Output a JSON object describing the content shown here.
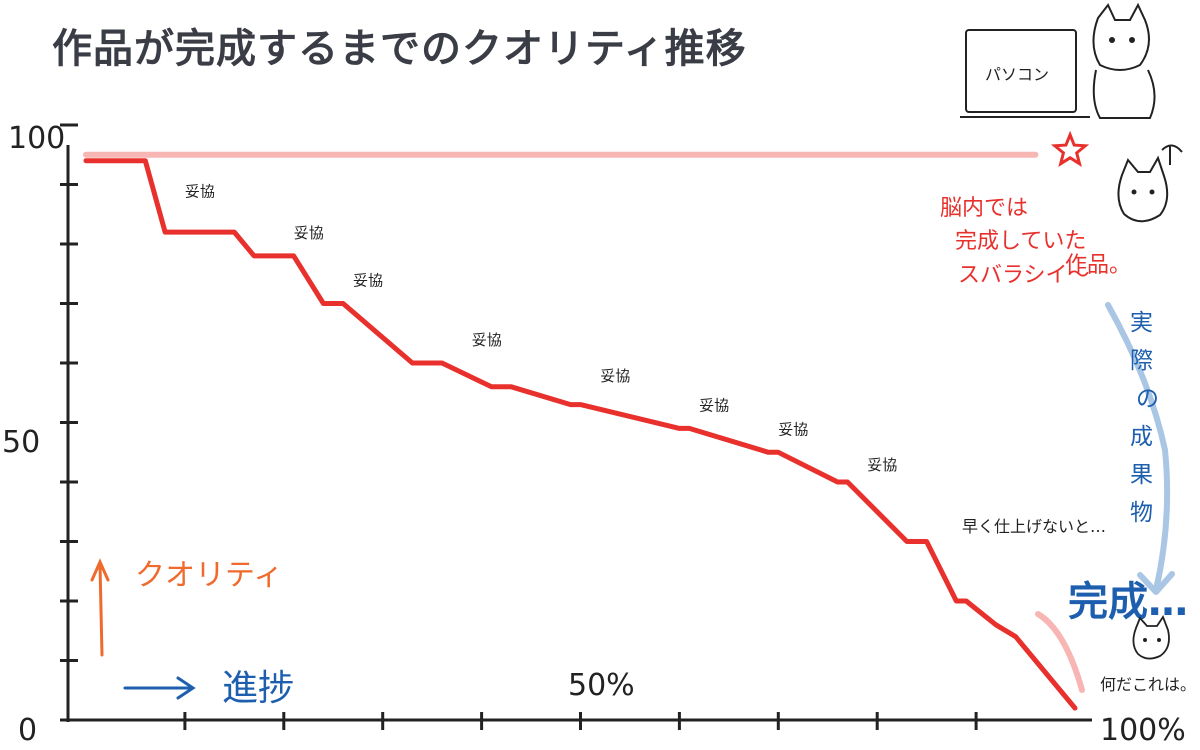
{
  "title": "作品が完成するまでのクオリティ推移",
  "chart_data": {
    "type": "line",
    "xlim": [
      0,
      100
    ],
    "ylim": [
      0,
      100
    ],
    "ytick_labels": [
      "100",
      "50",
      "0"
    ],
    "xtick_labels": [
      "50%",
      "100%"
    ],
    "y_axis_label": "クオリティ",
    "x_axis_label": "進捗",
    "ideal_level": 95,
    "series": [
      {
        "x": [
          0,
          6,
          8,
          15,
          17,
          21,
          24,
          26,
          33,
          36,
          41,
          43,
          49,
          50,
          60,
          61,
          69,
          70,
          76,
          77,
          83,
          85,
          88,
          89,
          92,
          94,
          100
        ],
        "y": [
          94,
          94,
          82,
          82,
          78,
          78,
          70,
          70,
          60,
          60,
          56,
          56,
          53,
          53,
          49,
          49,
          45,
          45,
          40,
          40,
          30,
          30,
          20,
          20,
          16,
          14,
          2
        ]
      }
    ],
    "annotations": [
      {
        "text": "妥協",
        "x": 10,
        "y": 88
      },
      {
        "text": "妥協",
        "x": 21,
        "y": 81
      },
      {
        "text": "妥協",
        "x": 27,
        "y": 73
      },
      {
        "text": "妥協",
        "x": 39,
        "y": 63
      },
      {
        "text": "妥協",
        "x": 52,
        "y": 57
      },
      {
        "text": "妥協",
        "x": 62,
        "y": 52
      },
      {
        "text": "妥協",
        "x": 70,
        "y": 48
      },
      {
        "text": "妥協",
        "x": 79,
        "y": 42
      }
    ]
  },
  "notes": {
    "brain": [
      "脳内では",
      "完成していた",
      "スバラシイ～",
      "作品。"
    ],
    "actual": [
      "実",
      "際",
      "の",
      "成",
      "果",
      "物"
    ],
    "hurry": "早く仕上げないと…",
    "done": "完成…",
    "what": "何だこれは。",
    "pc": "パソコン"
  },
  "colors": {
    "line": "#e8302c",
    "ideal": "#f7b6b3",
    "actual_arrow": "#a9c6e4",
    "quality": "#ef6a2c",
    "progress": "#1d5fae",
    "title": "#3a3d45"
  }
}
